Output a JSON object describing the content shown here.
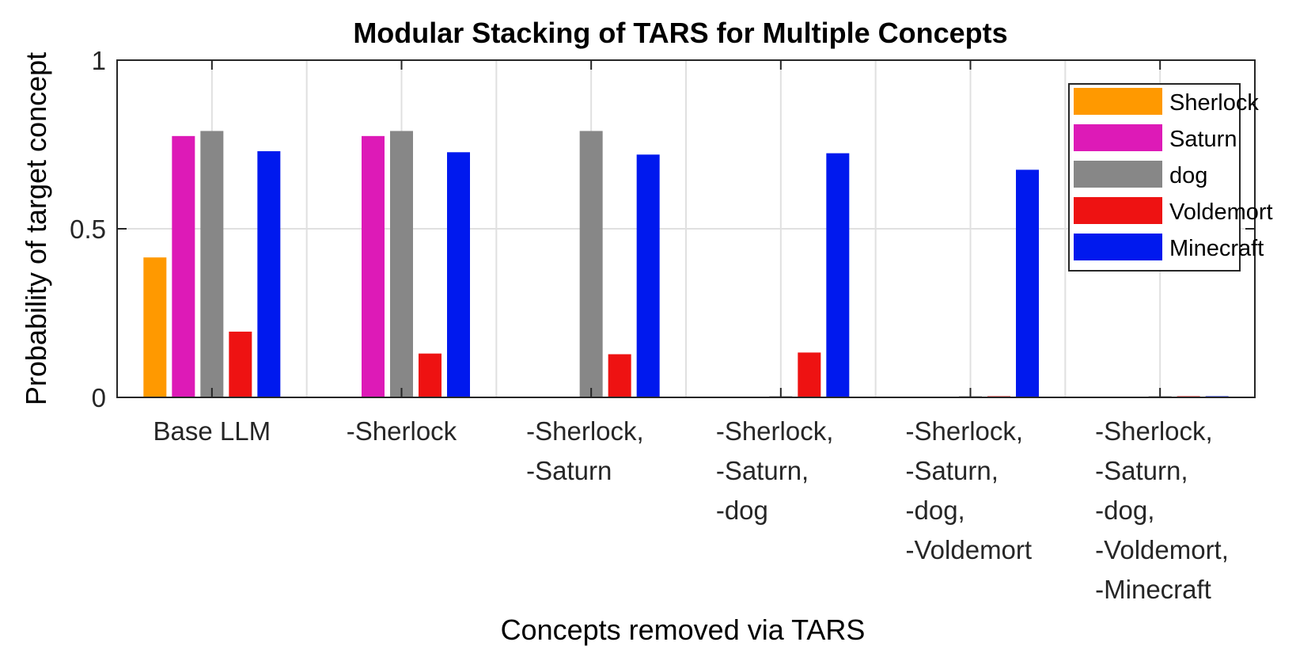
{
  "chart_data": {
    "type": "bar",
    "title": "Modular Stacking of TARS for Multiple Concepts",
    "xlabel": "Concepts removed via TARS",
    "ylabel": "Probability of target concept",
    "ylim": [
      0,
      1
    ],
    "yticks": [
      "0",
      "0.5",
      "1"
    ],
    "grid": true,
    "legend_position": "top-right",
    "categories": [
      [
        "Base LLM"
      ],
      [
        "-Sherlock"
      ],
      [
        "-Sherlock,",
        "-Saturn"
      ],
      [
        "-Sherlock,",
        "-Saturn,",
        "-dog"
      ],
      [
        "-Sherlock,",
        "-Saturn,",
        "-dog,",
        "-Voldemort"
      ],
      [
        "-Sherlock,",
        "-Saturn,",
        "-dog,",
        "-Voldemort,",
        "-Minecraft"
      ]
    ],
    "series": [
      {
        "name": "Sherlock",
        "color": "#ff9900",
        "values": [
          0.415,
          0.0,
          0.0,
          0.0,
          0.0,
          0.0
        ]
      },
      {
        "name": "Saturn",
        "color": "#dd1ab7",
        "values": [
          0.775,
          0.775,
          0.0,
          0.0,
          0.0,
          0.0
        ]
      },
      {
        "name": "dog",
        "color": "#878787",
        "values": [
          0.79,
          0.79,
          0.79,
          0.002,
          0.002,
          0.002
        ]
      },
      {
        "name": "Voldemort",
        "color": "#ee1212",
        "values": [
          0.195,
          0.13,
          0.128,
          0.133,
          0.002,
          0.002
        ]
      },
      {
        "name": "Minecraft",
        "color": "#0019ee",
        "values": [
          0.73,
          0.727,
          0.72,
          0.724,
          0.675,
          0.002
        ]
      }
    ]
  }
}
